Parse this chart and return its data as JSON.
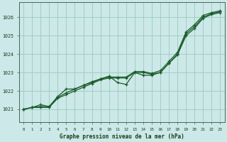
{
  "title": "Graphe pression niveau de la mer (hPa)",
  "bg_color": "#cce8e8",
  "grid_color": "#99ccbb",
  "line_color": "#1a5c2a",
  "xlim": [
    -0.5,
    23.5
  ],
  "ylim": [
    1020.3,
    1026.8
  ],
  "yticks": [
    1021,
    1022,
    1023,
    1024,
    1025,
    1026
  ],
  "xticks": [
    0,
    1,
    2,
    3,
    4,
    5,
    6,
    7,
    8,
    9,
    10,
    11,
    12,
    13,
    14,
    15,
    16,
    17,
    18,
    19,
    20,
    21,
    22,
    23
  ],
  "series_main": [
    1021.0,
    1021.1,
    1021.1,
    1021.1,
    1021.6,
    1021.8,
    1022.0,
    1022.2,
    1022.4,
    1022.6,
    1022.7,
    1022.7,
    1022.7,
    1023.0,
    1023.0,
    1022.9,
    1023.0,
    1023.5,
    1024.0,
    1025.1,
    1025.5,
    1026.0,
    1026.2,
    1026.3
  ],
  "series_upper": [
    1021.0,
    1021.1,
    1021.15,
    1021.15,
    1021.65,
    1021.9,
    1022.1,
    1022.3,
    1022.5,
    1022.65,
    1022.75,
    1022.75,
    1022.75,
    1023.05,
    1023.05,
    1022.95,
    1023.1,
    1023.6,
    1024.1,
    1025.2,
    1025.6,
    1026.1,
    1026.25,
    1026.35
  ],
  "series_diverge": [
    1021.0,
    1021.1,
    1021.25,
    1021.15,
    1021.7,
    1022.1,
    1022.1,
    1022.3,
    1022.45,
    1022.65,
    1022.8,
    1022.45,
    1022.35,
    1023.0,
    1022.85,
    1022.85,
    1023.0,
    1023.5,
    1023.95,
    1025.0,
    1025.4,
    1025.95,
    1026.15,
    1026.25
  ]
}
